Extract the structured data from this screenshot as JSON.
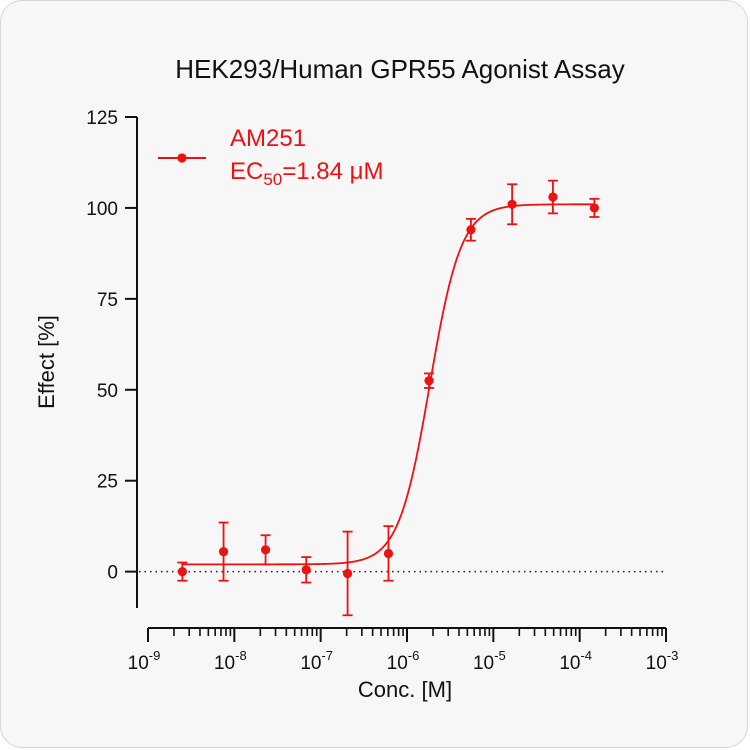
{
  "chart_data": {
    "type": "scatter",
    "title": "HEK293/Human GPR55 Agonist Assay",
    "xlabel": "Conc. [M]",
    "ylabel": "Effect  [%]",
    "x_scale": "log",
    "xlim": [
      1e-09,
      0.001
    ],
    "ylim": [
      -10,
      125
    ],
    "x_ticks": [
      {
        "base": "10",
        "exp": "-9"
      },
      {
        "base": "10",
        "exp": "-8"
      },
      {
        "base": "10",
        "exp": "-7"
      },
      {
        "base": "10",
        "exp": "-6"
      },
      {
        "base": "10",
        "exp": "-5"
      },
      {
        "base": "10",
        "exp": "-4"
      },
      {
        "base": "10",
        "exp": "-3"
      }
    ],
    "y_ticks": [
      "0",
      "25",
      "50",
      "75",
      "100",
      "125"
    ],
    "baseline": "dotted line at 0",
    "legend_position": "top-left",
    "series": [
      {
        "name": "AM251",
        "ec50_label": {
          "prefix": "EC",
          "sub": "50",
          "suffix": "=1.84 μM"
        },
        "color": "#ee1111",
        "points": [
          {
            "x": 2.5e-09,
            "y": 0.0,
            "err": 2.5
          },
          {
            "x": 7.5e-09,
            "y": 5.5,
            "err": 8.0
          },
          {
            "x": 2.3e-08,
            "y": 6.0,
            "err": 4.0
          },
          {
            "x": 6.8e-08,
            "y": 0.5,
            "err": 3.5
          },
          {
            "x": 2.05e-07,
            "y": -0.5,
            "err": 11.5
          },
          {
            "x": 6.1e-07,
            "y": 5.0,
            "err": 7.5
          },
          {
            "x": 1.8e-06,
            "y": 52.5,
            "err": 2.0
          },
          {
            "x": 5.5e-06,
            "y": 94.0,
            "err": 3.0
          },
          {
            "x": 1.65e-05,
            "y": 101.0,
            "err": 5.5
          },
          {
            "x": 4.9e-05,
            "y": 103.0,
            "err": 4.5
          },
          {
            "x": 0.000148,
            "y": 100.0,
            "err": 2.5
          }
        ],
        "fit": {
          "bottom": 2.0,
          "top": 101.0,
          "ec50": 1.84e-06,
          "hill": 2.4,
          "x_from": 2.5e-09,
          "x_to": 0.000148
        }
      }
    ]
  }
}
